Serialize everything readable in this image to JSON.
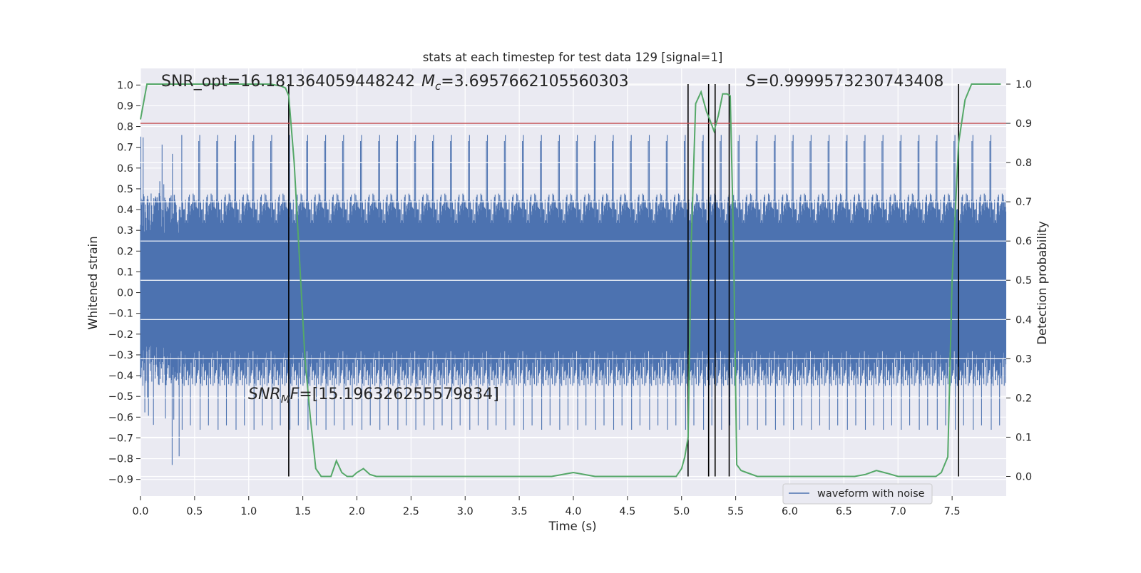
{
  "chart_data": {
    "type": "line",
    "title": "stats at each timestep for test data 129 [signal=1]",
    "xlabel": "Time (s)",
    "ylabel_left": "Whitened strain",
    "ylabel_right": "Detection probability",
    "xlim": [
      0.0,
      8.0
    ],
    "ylim_left": [
      -0.98,
      1.08
    ],
    "ylim_right": [
      -0.05,
      1.04
    ],
    "xticks": [
      "0.0",
      "0.5",
      "1.0",
      "1.5",
      "2.0",
      "2.5",
      "3.0",
      "3.5",
      "4.0",
      "4.5",
      "5.0",
      "5.5",
      "6.0",
      "6.5",
      "7.0",
      "7.5"
    ],
    "yticks_left": [
      "-0.9",
      "-0.8",
      "-0.7",
      "-0.6",
      "-0.5",
      "-0.4",
      "-0.3",
      "-0.2",
      "-0.1",
      "0.0",
      "0.1",
      "0.2",
      "0.3",
      "0.4",
      "0.5",
      "0.6",
      "0.7",
      "0.8",
      "0.9",
      "1.0"
    ],
    "yticks_right": [
      "0.0",
      "0.1",
      "0.2",
      "0.3",
      "0.4",
      "0.5",
      "0.6",
      "0.7",
      "0.8",
      "0.9",
      "1.0"
    ],
    "grid": true,
    "legend": {
      "entries": [
        "waveform with noise"
      ],
      "placement": "lower-right"
    },
    "annotations": {
      "snr_opt": "SNR_opt=16.181364059448242",
      "mc_symbol": "M",
      "mc_sub": "c",
      "mc_value": "=3.6957662105560303",
      "s_symbol": "S",
      "s_value": "=0.9999573230743408",
      "snr_mf_symbol": "SNR",
      "snr_mf_sub": "M",
      "snr_mf_f": "F",
      "snr_mf_value": "=[15.196326255579834]"
    },
    "series": [
      {
        "name": "waveform with noise",
        "axis": "left",
        "color": "#4c72b0",
        "kind": "noise",
        "envelope_typical": [
          -0.45,
          0.48
        ],
        "envelope_extreme": [
          -0.87,
          0.77
        ]
      },
      {
        "axis": "right",
        "color": "#55a868",
        "x": [
          0.0,
          0.06,
          0.2,
          0.4,
          0.6,
          0.8,
          1.0,
          1.1,
          1.2,
          1.3,
          1.34,
          1.37,
          1.42,
          1.47,
          1.52,
          1.57,
          1.62,
          1.67,
          1.71,
          1.76,
          1.81,
          1.86,
          1.91,
          1.96,
          2.0,
          2.06,
          2.12,
          2.18,
          2.25,
          2.35,
          2.5,
          2.6,
          2.7,
          2.85,
          3.0,
          3.2,
          3.4,
          3.6,
          3.8,
          4.0,
          4.2,
          4.4,
          4.6,
          4.8,
          4.95,
          5.0,
          5.03,
          5.06,
          5.09,
          5.13,
          5.18,
          5.23,
          5.26,
          5.3,
          5.34,
          5.38,
          5.42,
          5.45,
          5.48,
          5.51,
          5.55,
          5.6,
          5.7,
          5.8,
          6.0,
          6.2,
          6.4,
          6.6,
          6.7,
          6.8,
          6.9,
          7.0,
          7.1,
          7.2,
          7.3,
          7.35,
          7.4,
          7.46,
          7.5,
          7.56,
          7.62,
          7.68,
          7.75,
          7.9,
          7.95
        ],
        "y": [
          0.91,
          1.0,
          1.0,
          1.0,
          1.0,
          1.0,
          1.0,
          1.0,
          1.0,
          0.995,
          0.99,
          0.97,
          0.8,
          0.55,
          0.3,
          0.15,
          0.02,
          0.0,
          0.0,
          0.0,
          0.04,
          0.01,
          0.0,
          0.0,
          0.01,
          0.02,
          0.005,
          0.0,
          0.0,
          0.0,
          0.0,
          0.0,
          0.0,
          0.0,
          0.0,
          0.0,
          0.0,
          0.0,
          0.0,
          0.01,
          0.0,
          0.0,
          0.0,
          0.0,
          0.0,
          0.02,
          0.05,
          0.1,
          0.6,
          0.95,
          0.98,
          0.93,
          0.91,
          0.88,
          0.92,
          0.975,
          0.975,
          0.97,
          0.6,
          0.03,
          0.015,
          0.01,
          0.0,
          0.0,
          0.0,
          0.0,
          0.0,
          0.0,
          0.005,
          0.015,
          0.008,
          0.0,
          0.0,
          0.0,
          0.0,
          0.0,
          0.01,
          0.05,
          0.5,
          0.85,
          0.96,
          1.0,
          1.0,
          1.0,
          1.0
        ]
      }
    ],
    "threshold": {
      "axis": "right",
      "value": 0.9,
      "color": "#c44e52"
    },
    "detection_markers_x": [
      1.37,
      5.06,
      5.25,
      5.31,
      5.44,
      7.56
    ]
  }
}
